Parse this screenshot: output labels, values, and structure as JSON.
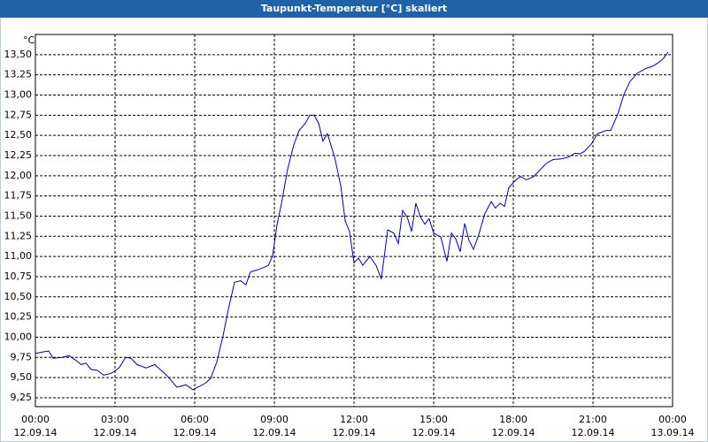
{
  "chart_data": {
    "type": "line",
    "title": "Taupunkt-Temperatur [°C] skaliert",
    "y_unit": "°C",
    "x": [
      0,
      0.33,
      0.5,
      0.67,
      1.0,
      1.27,
      1.5,
      1.73,
      1.9,
      2.1,
      2.33,
      2.57,
      2.83,
      3.0,
      3.17,
      3.4,
      3.6,
      3.83,
      4.17,
      4.5,
      4.77,
      5.0,
      5.33,
      5.67,
      5.93,
      6.17,
      6.4,
      6.6,
      6.83,
      7.07,
      7.27,
      7.5,
      7.73,
      7.93,
      8.1,
      8.33,
      8.57,
      8.77,
      8.93,
      9.1,
      9.27,
      9.5,
      9.73,
      9.93,
      10.17,
      10.33,
      10.5,
      10.67,
      10.83,
      11.0,
      11.27,
      11.5,
      11.67,
      11.83,
      12.0,
      12.17,
      12.33,
      12.6,
      12.83,
      13.03,
      13.27,
      13.5,
      13.67,
      13.83,
      14.0,
      14.17,
      14.33,
      14.5,
      14.67,
      14.83,
      15.0,
      15.27,
      15.5,
      15.67,
      15.83,
      16.0,
      16.17,
      16.33,
      16.5,
      16.67,
      16.93,
      17.17,
      17.33,
      17.5,
      17.67,
      17.83,
      18.07,
      18.27,
      18.5,
      18.77,
      19.0,
      19.23,
      19.5,
      19.83,
      20.07,
      20.33,
      20.5,
      20.67,
      20.93,
      21.17,
      21.5,
      21.67,
      21.93,
      22.17,
      22.4,
      22.67,
      23.0,
      23.27,
      23.5,
      23.67,
      23.83
    ],
    "values": [
      9.8,
      9.82,
      9.83,
      9.74,
      9.75,
      9.77,
      9.72,
      9.66,
      9.68,
      9.6,
      9.59,
      9.53,
      9.55,
      9.58,
      9.63,
      9.75,
      9.74,
      9.66,
      9.62,
      9.66,
      9.58,
      9.51,
      9.38,
      9.41,
      9.35,
      9.39,
      9.43,
      9.49,
      9.69,
      10.02,
      10.35,
      10.68,
      10.7,
      10.65,
      10.81,
      10.83,
      10.86,
      10.89,
      11.0,
      11.39,
      11.66,
      12.08,
      12.38,
      12.56,
      12.65,
      12.75,
      12.75,
      12.65,
      12.43,
      12.52,
      12.23,
      11.88,
      11.44,
      11.31,
      10.92,
      10.98,
      10.89,
      11.0,
      10.89,
      10.72,
      11.33,
      11.29,
      11.16,
      11.57,
      11.49,
      11.31,
      11.66,
      11.49,
      11.4,
      11.47,
      11.29,
      11.24,
      10.94,
      11.29,
      11.22,
      11.06,
      11.41,
      11.2,
      11.09,
      11.24,
      11.53,
      11.68,
      11.6,
      11.66,
      11.62,
      11.85,
      11.94,
      11.99,
      11.95,
      11.99,
      12.07,
      12.15,
      12.2,
      12.21,
      12.23,
      12.28,
      12.27,
      12.3,
      12.39,
      12.52,
      12.56,
      12.56,
      12.76,
      13.01,
      13.17,
      13.27,
      13.33,
      13.36,
      13.41,
      13.46,
      13.53
    ],
    "color": "#0000a0",
    "xlim": [
      0,
      24
    ],
    "xticks": [
      {
        "value": 0,
        "label": "00:00",
        "date": "12.09.14"
      },
      {
        "value": 3,
        "label": "03:00",
        "date": "12.09.14"
      },
      {
        "value": 6,
        "label": "06:00",
        "date": "12.09.14"
      },
      {
        "value": 9,
        "label": "09:00",
        "date": "12.09.14"
      },
      {
        "value": 12,
        "label": "12:00",
        "date": "12.09.14"
      },
      {
        "value": 15,
        "label": "15:00",
        "date": "12.09.14"
      },
      {
        "value": 18,
        "label": "18:00",
        "date": "12.09.14"
      },
      {
        "value": 21,
        "label": "21:00",
        "date": "12.09.14"
      },
      {
        "value": 24,
        "label": "00:00",
        "date": "13.09.14"
      }
    ],
    "ylim": [
      9.14,
      13.75
    ],
    "yticks": [
      {
        "value": 9.25,
        "label": "9,25"
      },
      {
        "value": 9.5,
        "label": "9,50"
      },
      {
        "value": 9.75,
        "label": "9,75"
      },
      {
        "value": 10.0,
        "label": "10,00"
      },
      {
        "value": 10.25,
        "label": "10,25"
      },
      {
        "value": 10.5,
        "label": "10,50"
      },
      {
        "value": 10.75,
        "label": "10,75"
      },
      {
        "value": 11.0,
        "label": "11,00"
      },
      {
        "value": 11.25,
        "label": "11,25"
      },
      {
        "value": 11.5,
        "label": "11,50"
      },
      {
        "value": 11.75,
        "label": "11,75"
      },
      {
        "value": 12.0,
        "label": "12,00"
      },
      {
        "value": 12.25,
        "label": "12,25"
      },
      {
        "value": 12.5,
        "label": "12,50"
      },
      {
        "value": 12.75,
        "label": "12,75"
      },
      {
        "value": 13.0,
        "label": "13,00"
      },
      {
        "value": 13.25,
        "label": "13,25"
      },
      {
        "value": 13.5,
        "label": "13,50"
      }
    ],
    "grid": true
  }
}
